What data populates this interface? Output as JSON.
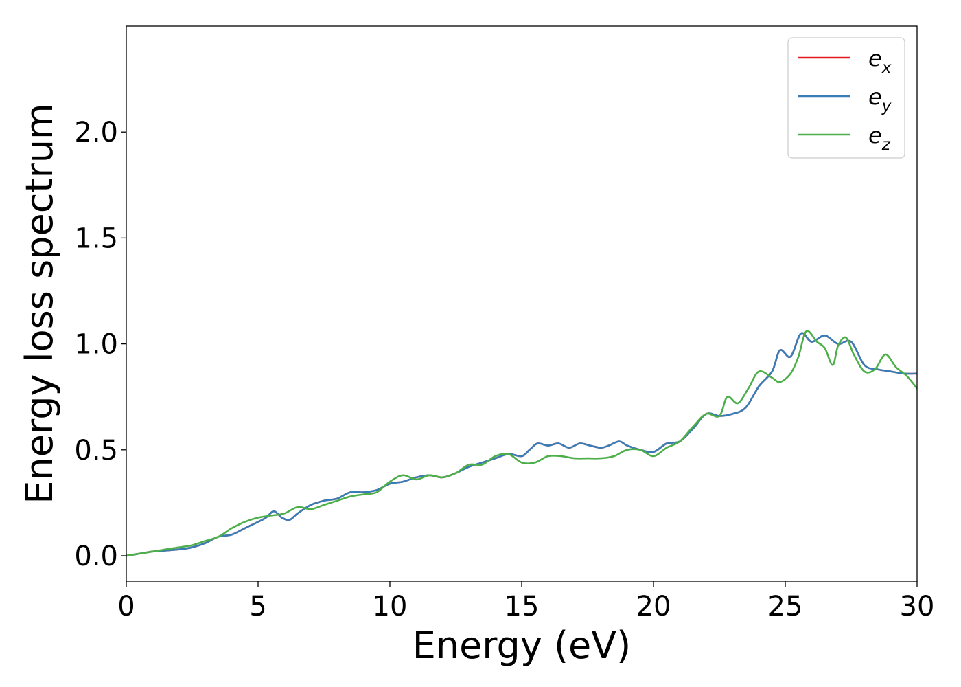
{
  "chart_data": {
    "type": "line",
    "title": "",
    "xlabel": "Energy (eV)",
    "ylabel": "Energy loss spectrum",
    "xlim": [
      0,
      30
    ],
    "ylim": [
      -0.12,
      2.5
    ],
    "xticks": [
      0,
      5,
      10,
      15,
      20,
      25,
      30
    ],
    "yticks": [
      0.0,
      0.5,
      1.0,
      1.5,
      2.0
    ],
    "ytick_labels": [
      "0.0",
      "0.5",
      "1.0",
      "1.5",
      "2.0"
    ],
    "grid": false,
    "legend": "top-right",
    "series": [
      {
        "name": "e_x",
        "label_base": "e",
        "label_sub": "x",
        "color": "#e41a1c",
        "x": [
          0,
          0.5,
          1,
          1.5,
          2,
          2.5,
          3,
          3.5,
          4,
          4.5,
          5,
          5.3,
          5.6,
          5.9,
          6.2,
          6.5,
          7,
          7.5,
          8,
          8.5,
          9,
          9.5,
          10,
          10.5,
          11,
          11.5,
          12,
          12.5,
          13,
          13.5,
          14,
          14.5,
          15,
          15.3,
          15.6,
          16,
          16.4,
          16.8,
          17.2,
          17.6,
          18,
          18.3,
          18.7,
          19,
          19.5,
          20,
          20.5,
          21,
          21.5,
          22,
          22.5,
          23,
          23.5,
          24,
          24.5,
          24.8,
          25.2,
          25.6,
          26,
          26.5,
          27,
          27.5,
          28,
          28.5,
          29,
          29.5,
          30
        ],
        "y": [
          0,
          0.01,
          0.02,
          0.025,
          0.03,
          0.04,
          0.06,
          0.09,
          0.1,
          0.13,
          0.16,
          0.18,
          0.21,
          0.18,
          0.17,
          0.2,
          0.24,
          0.26,
          0.27,
          0.3,
          0.3,
          0.31,
          0.34,
          0.35,
          0.37,
          0.38,
          0.37,
          0.39,
          0.42,
          0.44,
          0.46,
          0.48,
          0.47,
          0.5,
          0.53,
          0.52,
          0.53,
          0.51,
          0.53,
          0.52,
          0.51,
          0.52,
          0.54,
          0.52,
          0.5,
          0.49,
          0.53,
          0.54,
          0.6,
          0.67,
          0.66,
          0.67,
          0.7,
          0.8,
          0.87,
          0.97,
          0.94,
          1.05,
          1.01,
          1.04,
          1.0,
          1.01,
          0.9,
          0.88,
          0.87,
          0.86,
          0.86
        ]
      },
      {
        "name": "e_y",
        "label_base": "e",
        "label_sub": "y",
        "color": "#377eb8",
        "x": [
          0,
          0.5,
          1,
          1.5,
          2,
          2.5,
          3,
          3.5,
          4,
          4.5,
          5,
          5.3,
          5.6,
          5.9,
          6.2,
          6.5,
          7,
          7.5,
          8,
          8.5,
          9,
          9.5,
          10,
          10.5,
          11,
          11.5,
          12,
          12.5,
          13,
          13.5,
          14,
          14.5,
          15,
          15.3,
          15.6,
          16,
          16.4,
          16.8,
          17.2,
          17.6,
          18,
          18.3,
          18.7,
          19,
          19.5,
          20,
          20.5,
          21,
          21.5,
          22,
          22.5,
          23,
          23.5,
          24,
          24.5,
          24.8,
          25.2,
          25.6,
          26,
          26.5,
          27,
          27.5,
          28,
          28.5,
          29,
          29.5,
          30
        ],
        "y": [
          0,
          0.01,
          0.02,
          0.025,
          0.03,
          0.04,
          0.06,
          0.09,
          0.1,
          0.13,
          0.16,
          0.18,
          0.21,
          0.18,
          0.17,
          0.2,
          0.24,
          0.26,
          0.27,
          0.3,
          0.3,
          0.31,
          0.34,
          0.35,
          0.37,
          0.38,
          0.37,
          0.39,
          0.42,
          0.44,
          0.46,
          0.48,
          0.47,
          0.5,
          0.53,
          0.52,
          0.53,
          0.51,
          0.53,
          0.52,
          0.51,
          0.52,
          0.54,
          0.52,
          0.5,
          0.49,
          0.53,
          0.54,
          0.6,
          0.67,
          0.66,
          0.67,
          0.7,
          0.8,
          0.87,
          0.97,
          0.94,
          1.05,
          1.01,
          1.04,
          1.0,
          1.01,
          0.9,
          0.88,
          0.87,
          0.86,
          0.86
        ]
      },
      {
        "name": "e_z",
        "label_base": "e",
        "label_sub": "z",
        "color": "#4daf4a",
        "x": [
          0,
          0.5,
          1,
          1.5,
          2,
          2.5,
          3,
          3.5,
          4,
          4.5,
          5,
          5.5,
          6,
          6.5,
          7,
          7.5,
          8,
          8.5,
          9,
          9.5,
          10,
          10.5,
          11,
          11.5,
          12,
          12.5,
          13,
          13.5,
          14,
          14.5,
          15,
          15.5,
          16,
          16.5,
          17,
          17.5,
          18,
          18.5,
          19,
          19.5,
          20,
          20.5,
          21,
          21.5,
          22,
          22.5,
          22.8,
          23.2,
          23.6,
          24,
          24.5,
          24.8,
          25.2,
          25.5,
          25.8,
          26.2,
          26.5,
          26.8,
          27,
          27.3,
          27.6,
          28,
          28.4,
          28.8,
          29.2,
          29.6,
          30
        ],
        "y": [
          0,
          0.01,
          0.02,
          0.03,
          0.04,
          0.05,
          0.07,
          0.09,
          0.13,
          0.16,
          0.18,
          0.19,
          0.2,
          0.23,
          0.22,
          0.24,
          0.26,
          0.28,
          0.29,
          0.3,
          0.35,
          0.38,
          0.36,
          0.38,
          0.37,
          0.39,
          0.43,
          0.43,
          0.47,
          0.48,
          0.44,
          0.44,
          0.47,
          0.47,
          0.46,
          0.46,
          0.46,
          0.47,
          0.5,
          0.5,
          0.47,
          0.51,
          0.54,
          0.61,
          0.67,
          0.66,
          0.75,
          0.72,
          0.79,
          0.87,
          0.84,
          0.82,
          0.86,
          0.94,
          1.06,
          1.01,
          0.98,
          0.9,
          0.99,
          1.03,
          0.95,
          0.87,
          0.88,
          0.95,
          0.89,
          0.85,
          0.79
        ]
      }
    ]
  }
}
